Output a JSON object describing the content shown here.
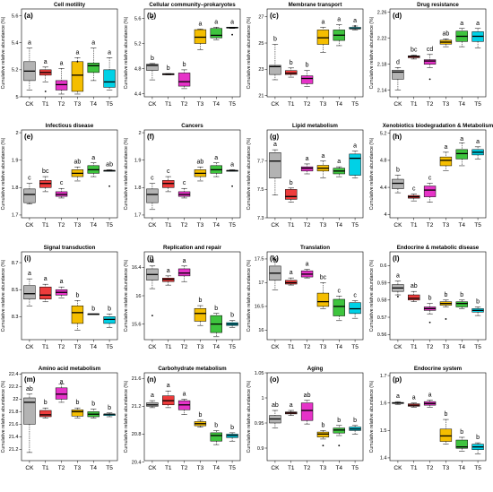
{
  "figure": {
    "ylabel": "Cumulative relative abundance (%)",
    "categories": [
      "CK",
      "T1",
      "T2",
      "T3",
      "T4",
      "T5"
    ],
    "colors": [
      "#b3b3b3",
      "#ee3b3b",
      "#e633c8",
      "#f5be00",
      "#3ec43e",
      "#00d1e6"
    ]
  },
  "chart_data": [
    {
      "type": "box",
      "letter": "(a)",
      "title": "Cell motility",
      "ylim": [
        5.0,
        5.65
      ],
      "yticks": [
        5.0,
        5.2,
        5.4,
        5.6
      ],
      "letters_pos": "right",
      "boxes": [
        [
          5.05,
          5.12,
          5.19,
          5.26,
          5.36
        ],
        [
          5.11,
          5.16,
          5.18,
          5.2,
          5.22
        ],
        [
          5.02,
          5.05,
          5.09,
          5.12,
          5.21
        ],
        [
          5.02,
          5.04,
          5.16,
          5.26,
          5.29
        ],
        [
          5.12,
          5.18,
          5.23,
          5.25,
          5.36
        ],
        [
          5.05,
          5.07,
          5.11,
          5.2,
          5.29
        ]
      ],
      "outliers": [
        [],
        [
          5.04
        ],
        [],
        [
          5.26
        ],
        [],
        []
      ],
      "sig": [
        "a",
        "a",
        "a",
        "a",
        "a",
        "a"
      ]
    },
    {
      "type": "box",
      "letter": "(b)",
      "title": "Cellular community–prokaryotes",
      "ylim": [
        4.35,
        5.75
      ],
      "yticks": [
        4.4,
        4.8,
        5.2,
        5.6
      ],
      "letters_pos": "right",
      "boxes": [
        [
          4.62,
          4.77,
          4.85,
          4.87,
          4.88
        ],
        [
          4.7,
          4.7,
          4.71,
          4.72,
          4.72
        ],
        [
          4.48,
          4.52,
          4.59,
          4.73,
          4.78
        ],
        [
          5.1,
          5.2,
          5.3,
          5.42,
          5.43
        ],
        [
          5.26,
          5.29,
          5.33,
          5.44,
          5.46
        ],
        [
          5.44,
          5.45,
          5.45,
          5.46,
          5.46
        ]
      ],
      "outliers": [
        [],
        [],
        [],
        [],
        [],
        [
          5.34
        ]
      ],
      "sig": [
        "b",
        "b",
        "b",
        "a",
        "a",
        "a"
      ],
      "extra_sig": [
        [
          0,
          5.58,
          "c"
        ]
      ]
    },
    {
      "type": "box",
      "letter": "(c)",
      "title": "Membrane transport",
      "ylim": [
        20.9,
        27.6
      ],
      "yticks": [
        21,
        23,
        25,
        27
      ],
      "letters_pos": "right",
      "boxes": [
        [
          22.2,
          22.6,
          23.2,
          23.3,
          24.9
        ],
        [
          22.4,
          22.6,
          22.7,
          22.9,
          23.1
        ],
        [
          21.7,
          21.9,
          22.3,
          22.5,
          22.9
        ],
        [
          24.3,
          24.9,
          25.4,
          26.0,
          26.2
        ],
        [
          24.8,
          25.2,
          25.6,
          26.0,
          26.4
        ],
        [
          26.0,
          26.1,
          26.1,
          26.2,
          26.3
        ]
      ],
      "outliers": [
        [],
        [],
        [],
        [],
        [],
        [
          26.3
        ]
      ],
      "sig": [
        "b",
        "b",
        "b",
        "a",
        "a",
        "a"
      ]
    },
    {
      "type": "box",
      "letter": "(d)",
      "title": "Drug resistance",
      "ylim": [
        2.13,
        2.265
      ],
      "yticks": [
        2.14,
        2.18,
        2.22,
        2.26
      ],
      "letters_pos": "right",
      "boxes": [
        [
          2.14,
          2.157,
          2.168,
          2.171,
          2.175
        ],
        [
          2.188,
          2.19,
          2.192,
          2.193,
          2.194
        ],
        [
          2.175,
          2.18,
          2.185,
          2.187,
          2.195
        ],
        [
          2.207,
          2.211,
          2.214,
          2.217,
          2.219
        ],
        [
          2.207,
          2.215,
          2.223,
          2.231,
          2.235
        ],
        [
          2.205,
          2.215,
          2.223,
          2.23,
          2.235
        ]
      ],
      "outliers": [
        [],
        [],
        [
          2.157
        ],
        [],
        [],
        []
      ],
      "sig": [
        "d",
        "bc",
        "cd",
        "ab",
        "a",
        "a"
      ]
    },
    {
      "type": "box",
      "letter": "(e)",
      "title": "Infectious disease",
      "ylim": [
        1.69,
        2.01
      ],
      "yticks": [
        1.7,
        1.8,
        1.9,
        2.0
      ],
      "letters_pos": "right",
      "boxes": [
        [
          1.74,
          1.745,
          1.775,
          1.795,
          1.815
        ],
        [
          1.785,
          1.8,
          1.815,
          1.826,
          1.84
        ],
        [
          1.762,
          1.768,
          1.775,
          1.785,
          1.797
        ],
        [
          1.824,
          1.84,
          1.852,
          1.865,
          1.875
        ],
        [
          1.84,
          1.852,
          1.865,
          1.88,
          1.89
        ],
        [
          1.86,
          1.862,
          1.862,
          1.862,
          1.865
        ]
      ],
      "outliers": [
        [],
        [],
        [],
        [],
        [],
        [
          1.805
        ]
      ],
      "sig": [
        "c",
        "bc",
        "c",
        "ab",
        "a",
        "ab"
      ]
    },
    {
      "type": "box",
      "letter": "(f)",
      "title": "Cancers",
      "ylim": [
        1.69,
        2.01
      ],
      "yticks": [
        1.7,
        1.8,
        1.9,
        2.0
      ],
      "letters_pos": "right",
      "boxes": [
        [
          1.72,
          1.745,
          1.775,
          1.795,
          1.815
        ],
        [
          1.785,
          1.8,
          1.815,
          1.826,
          1.84
        ],
        [
          1.762,
          1.768,
          1.775,
          1.785,
          1.797
        ],
        [
          1.824,
          1.84,
          1.852,
          1.865,
          1.875
        ],
        [
          1.84,
          1.852,
          1.865,
          1.88,
          1.89
        ],
        [
          1.86,
          1.862,
          1.862,
          1.862,
          1.865
        ]
      ],
      "outliers": [
        [],
        [],
        [],
        [],
        [],
        [
          1.805
        ]
      ],
      "sig": [
        "c",
        "c",
        "c",
        "ab",
        "a",
        "a"
      ]
    },
    {
      "type": "box",
      "letter": "(g)",
      "title": "Lipid metabolism",
      "ylim": [
        7.3,
        7.92
      ],
      "yticks": [
        7.3,
        7.5,
        7.7
      ],
      "letters_pos": "right",
      "boxes": [
        [
          7.46,
          7.58,
          7.7,
          7.76,
          7.78
        ],
        [
          7.41,
          7.43,
          7.45,
          7.5,
          7.51
        ],
        [
          7.61,
          7.63,
          7.65,
          7.66,
          7.68
        ],
        [
          7.58,
          7.63,
          7.65,
          7.67,
          7.7
        ],
        [
          7.59,
          7.61,
          7.63,
          7.65,
          7.66
        ],
        [
          7.58,
          7.6,
          7.72,
          7.75,
          7.77
        ]
      ],
      "outliers": [
        [],
        [],
        [],
        [],
        [],
        []
      ],
      "sig": [
        "a",
        "b",
        "a",
        "a",
        "a",
        "a"
      ]
    },
    {
      "type": "box",
      "letter": "(h)",
      "title": "Xenobiotics biodegradation & Metabolism",
      "ylim": [
        3.95,
        5.25
      ],
      "yticks": [
        4.0,
        4.4,
        4.8,
        5.2
      ],
      "letters_pos": "right",
      "boxes": [
        [
          4.32,
          4.38,
          4.46,
          4.52,
          4.58
        ],
        [
          4.2,
          4.24,
          4.26,
          4.28,
          4.3
        ],
        [
          4.18,
          4.26,
          4.36,
          4.42,
          4.46
        ],
        [
          4.65,
          4.72,
          4.8,
          4.85,
          4.92
        ],
        [
          4.72,
          4.82,
          4.9,
          4.96,
          5.06
        ],
        [
          4.82,
          4.88,
          4.92,
          4.96,
          5.0
        ]
      ],
      "outliers": [
        [],
        [],
        [],
        [],
        [],
        []
      ],
      "sig": [
        "b",
        "c",
        "c",
        "a",
        "a",
        "a"
      ]
    },
    {
      "type": "box",
      "letter": "(i)",
      "title": "Signal transduction",
      "ylim": [
        8.13,
        8.78
      ],
      "yticks": [
        8.3,
        8.5,
        8.7
      ],
      "letters_pos": "right",
      "boxes": [
        [
          8.38,
          8.43,
          8.47,
          8.53,
          8.58
        ],
        [
          8.41,
          8.43,
          8.46,
          8.52,
          8.54
        ],
        [
          8.44,
          8.46,
          8.48,
          8.5,
          8.52
        ],
        [
          8.2,
          8.25,
          8.33,
          8.38,
          8.42
        ],
        [
          8.32,
          8.32,
          8.32,
          8.32,
          8.32
        ],
        [
          8.22,
          8.25,
          8.28,
          8.3,
          8.32
        ]
      ],
      "outliers": [
        [],
        [],
        [],
        [],
        [],
        []
      ],
      "sig": [
        "a",
        "a",
        "a",
        "b",
        "b",
        "b"
      ]
    },
    {
      "type": "box",
      "letter": "(j)",
      "title": "Replication and repair",
      "ylim": [
        15.38,
        16.62
      ],
      "yticks": [
        15.6,
        16.0,
        16.4
      ],
      "letters_pos": "right",
      "boxes": [
        [
          16.1,
          16.22,
          16.3,
          16.38,
          16.42
        ],
        [
          16.15,
          16.2,
          16.23,
          16.25,
          16.28
        ],
        [
          16.2,
          16.28,
          16.32,
          16.38,
          16.42
        ],
        [
          15.58,
          15.64,
          15.75,
          15.82,
          15.86
        ],
        [
          15.42,
          15.48,
          15.6,
          15.72,
          15.75
        ],
        [
          15.55,
          15.58,
          15.6,
          15.62,
          15.65
        ]
      ],
      "outliers": [
        [
          15.72
        ],
        [],
        [],
        [],
        [],
        []
      ],
      "sig": [
        "a",
        "a",
        "a",
        "b",
        "b",
        "b"
      ]
    },
    {
      "type": "box",
      "letter": "(k)",
      "title": "Translation",
      "ylim": [
        15.8,
        17.65
      ],
      "yticks": [
        16.0,
        16.5,
        17.0,
        17.5
      ],
      "letters_pos": "right",
      "boxes": [
        [
          16.85,
          17.05,
          17.2,
          17.35,
          17.5
        ],
        [
          16.95,
          16.97,
          17.0,
          17.05,
          17.1
        ],
        [
          17.1,
          17.12,
          17.18,
          17.25,
          17.28
        ],
        [
          16.45,
          16.5,
          16.6,
          16.78,
          17.0
        ],
        [
          16.2,
          16.3,
          16.5,
          16.65,
          16.72
        ],
        [
          16.25,
          16.35,
          16.45,
          16.58,
          16.62
        ]
      ],
      "outliers": [
        [],
        [],
        [],
        [],
        [],
        []
      ],
      "sig": [
        "a",
        "a",
        "a",
        "bc",
        "c",
        "c"
      ]
    },
    {
      "type": "box",
      "letter": "(l)",
      "title": "Endocrine & metabolic disease",
      "ylim": [
        0.557,
        0.608
      ],
      "yticks": [
        0.56,
        0.57,
        0.58,
        0.59,
        0.6
      ],
      "letters_pos": "right",
      "boxes": [
        [
          0.583,
          0.585,
          0.587,
          0.589,
          0.591
        ],
        [
          0.579,
          0.58,
          0.581,
          0.583,
          0.585
        ],
        [
          0.572,
          0.574,
          0.575,
          0.576,
          0.578
        ],
        [
          0.576,
          0.577,
          0.578,
          0.579,
          0.58
        ],
        [
          0.575,
          0.576,
          0.578,
          0.579,
          0.58
        ],
        [
          0.571,
          0.573,
          0.574,
          0.575,
          0.576
        ]
      ],
      "outliers": [
        [
          0.582
        ],
        [],
        [
          0.567
        ],
        [
          0.569
        ],
        [],
        []
      ],
      "sig": [
        "a",
        "ab",
        "b",
        "b",
        "b",
        "b"
      ]
    },
    {
      "type": "box",
      "letter": "(m)",
      "title": "Amino acid metabolism",
      "ylim": [
        21.02,
        22.42
      ],
      "yticks": [
        21.2,
        21.4,
        21.6,
        21.8,
        22.0,
        22.2,
        22.4
      ],
      "letters_pos": "right",
      "boxes": [
        [
          21.15,
          21.6,
          21.95,
          22.02,
          22.08
        ],
        [
          21.7,
          21.72,
          21.75,
          21.82,
          21.86
        ],
        [
          21.95,
          22.0,
          22.08,
          22.18,
          22.24
        ],
        [
          21.7,
          21.73,
          21.8,
          21.83,
          21.86
        ],
        [
          21.7,
          21.72,
          21.76,
          21.8,
          21.84
        ],
        [
          21.72,
          21.74,
          21.76,
          21.76,
          21.78
        ]
      ],
      "outliers": [
        [],
        [],
        [],
        [],
        [],
        []
      ],
      "sig": [
        "ab",
        "b",
        "a",
        "b",
        "b",
        "b"
      ]
    },
    {
      "type": "box",
      "letter": "(n)",
      "title": "Carbohydrate metabolism",
      "ylim": [
        20.42,
        21.68
      ],
      "yticks": [
        20.4,
        20.8,
        21.2,
        21.6
      ],
      "letters_pos": "right",
      "boxes": [
        [
          21.18,
          21.2,
          21.22,
          21.25,
          21.28
        ],
        [
          21.18,
          21.22,
          21.28,
          21.35,
          21.42
        ],
        [
          21.08,
          21.15,
          21.22,
          21.28,
          21.3
        ],
        [
          20.9,
          20.92,
          20.95,
          20.98,
          21.0
        ],
        [
          20.65,
          20.7,
          20.78,
          20.82,
          20.85
        ],
        [
          20.7,
          20.75,
          20.78,
          20.8,
          20.82
        ]
      ],
      "outliers": [
        [],
        [],
        [],
        [],
        [],
        []
      ],
      "sig": [
        "a",
        "a",
        "a",
        "b",
        "b",
        "b"
      ]
    },
    {
      "type": "box",
      "letter": "(o)",
      "title": "Aging",
      "ylim": [
        0.875,
        1.05
      ],
      "yticks": [
        0.9,
        0.95,
        1.0,
        1.05
      ],
      "letters_pos": "right",
      "boxes": [
        [
          0.94,
          0.95,
          0.958,
          0.965,
          0.975
        ],
        [
          0.965,
          0.968,
          0.97,
          0.972,
          0.975
        ],
        [
          0.948,
          0.955,
          0.975,
          0.99,
          0.995
        ],
        [
          0.918,
          0.922,
          0.928,
          0.932,
          0.935
        ],
        [
          0.925,
          0.93,
          0.936,
          0.94,
          0.945
        ],
        [
          0.928,
          0.935,
          0.938,
          0.942,
          0.945
        ]
      ],
      "outliers": [
        [],
        [],
        [],
        [
          0.905
        ],
        [
          0.905
        ],
        []
      ],
      "sig": [
        "ab",
        "a",
        "ab",
        "b",
        "b",
        "b"
      ]
    },
    {
      "type": "box",
      "letter": "(p)",
      "title": "Endocrine system",
      "ylim": [
        1.39,
        1.71
      ],
      "yticks": [
        1.4,
        1.5,
        1.6,
        1.7
      ],
      "letters_pos": "right",
      "boxes": [
        [
          1.595,
          1.598,
          1.6,
          1.602,
          1.605
        ],
        [
          1.585,
          1.588,
          1.592,
          1.597,
          1.6
        ],
        [
          1.585,
          1.592,
          1.598,
          1.605,
          1.61
        ],
        [
          1.45,
          1.46,
          1.48,
          1.505,
          1.54
        ],
        [
          1.425,
          1.435,
          1.44,
          1.465,
          1.475
        ],
        [
          1.415,
          1.43,
          1.44,
          1.45,
          1.455
        ]
      ],
      "outliers": [
        [],
        [],
        [],
        [],
        [],
        []
      ],
      "sig": [
        "a",
        "a",
        "a",
        "b",
        "b",
        "b"
      ]
    }
  ]
}
